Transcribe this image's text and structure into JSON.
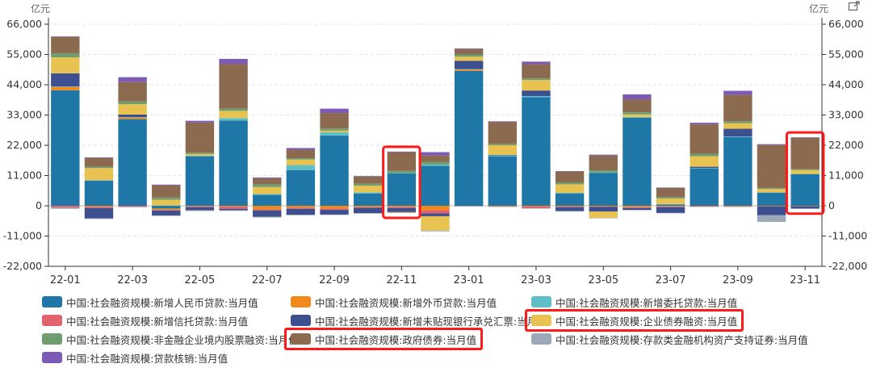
{
  "y_unit_left": "亿元",
  "y_unit_right": "亿元",
  "chart_data": {
    "type": "bar",
    "stacked": true,
    "categories": [
      "22-01",
      "22-02",
      "22-03",
      "22-04",
      "22-05",
      "22-06",
      "22-07",
      "22-08",
      "22-09",
      "22-10",
      "22-11",
      "22-12",
      "23-01",
      "23-02",
      "23-03",
      "23-04",
      "23-05",
      "23-06",
      "23-07",
      "23-08",
      "23-09",
      "23-10",
      "23-11"
    ],
    "x_tick_labels": [
      "22-01",
      "22-03",
      "22-05",
      "22-07",
      "22-09",
      "22-11",
      "23-01",
      "23-03",
      "23-05",
      "23-07",
      "23-09",
      "23-11"
    ],
    "ylim": [
      -22000,
      66000
    ],
    "y_ticks": [
      -22000,
      -11000,
      0,
      11000,
      22000,
      33000,
      44000,
      55000,
      66000
    ],
    "y_tick_labels": [
      "-22,000",
      "-11,000",
      "0",
      "11,000",
      "22,000",
      "33,000",
      "44,000",
      "55,000",
      "66,000"
    ],
    "grid": true,
    "legend_position": "bottom",
    "series": [
      {
        "name": "中国:社会融资规模:新增人民币贷款:当月值",
        "color": "#1f77a8",
        "values": [
          42000,
          9200,
          31500,
          -1000,
          18000,
          31000,
          4000,
          13000,
          25500,
          4500,
          11800,
          14500,
          49000,
          18000,
          39500,
          4500,
          12000,
          32000,
          500,
          13500,
          25000,
          4800,
          11500
        ]
      },
      {
        "name": "中国:社会融资规模:新增外币贷款:当月值",
        "color": "#f08a1c",
        "values": [
          1200,
          -400,
          600,
          -500,
          -200,
          -300,
          -1300,
          -700,
          -1000,
          -500,
          -400,
          -1600,
          500,
          -200,
          -300,
          -300,
          -300,
          -500,
          -200,
          -100,
          -200,
          -150,
          -100
        ]
      },
      {
        "name": "中国:社会融资规模:新增委托贷款:当月值",
        "color": "#5fbfc7",
        "values": [
          150,
          100,
          150,
          100,
          200,
          900,
          300,
          1800,
          1200,
          400,
          100,
          500,
          200,
          300,
          400,
          200,
          100,
          300,
          150,
          200,
          200,
          100,
          80
        ]
      },
      {
        "name": "中国:社会融资规模:新增信托贷款:当月值",
        "color": "#e0636e",
        "values": [
          -700,
          -400,
          -400,
          -200,
          -300,
          -800,
          -400,
          -400,
          -500,
          -200,
          -400,
          -1200,
          -100,
          -100,
          -600,
          -200,
          -100,
          -300,
          -300,
          -200,
          -150,
          -100,
          -100
        ]
      },
      {
        "name": "中国:社会融资规模:新增未贴现银行承兑汇票:当月值",
        "color": "#3d4f8f",
        "values": [
          4800,
          -3800,
          900,
          -1800,
          -1100,
          -500,
          -2300,
          -2200,
          -1700,
          -2000,
          -1500,
          -1000,
          3000,
          200,
          2000,
          -1400,
          -1700,
          -700,
          -2100,
          500,
          2800,
          -3200,
          -800
        ]
      },
      {
        "name": "中国:社会融资规模:企业债券融资:当月值",
        "color": "#e8c352",
        "values": [
          5800,
          4400,
          3800,
          2100,
          600,
          2600,
          2500,
          2000,
          600,
          2400,
          -200,
          -5200,
          1500,
          3500,
          3800,
          3100,
          -2300,
          900,
          2000,
          3800,
          2000,
          1200,
          1400
        ]
      },
      {
        "name": "中国:社会融资规模:非金融企业境内股票融资:当月值",
        "color": "#6e9e6f",
        "values": [
          1500,
          500,
          1000,
          800,
          500,
          800,
          1000,
          500,
          800,
          700,
          800,
          1000,
          800,
          500,
          600,
          700,
          800,
          800,
          500,
          900,
          700,
          400,
          300
        ]
      },
      {
        "name": "中国:社会融资规模:政府债券:当月值",
        "color": "#8b6a4f",
        "values": [
          6000,
          3200,
          7000,
          4500,
          11000,
          16200,
          2200,
          3100,
          5600,
          2700,
          6800,
          2300,
          2000,
          8000,
          5200,
          4000,
          5400,
          4700,
          3400,
          10800,
          9600,
          15600,
          11500
        ]
      },
      {
        "name": "中国:社会融资规模:存款类金融机构资产支持证券:当月值",
        "color": "#9aa8b8",
        "values": [
          -400,
          -200,
          -150,
          -200,
          -300,
          -250,
          -250,
          -150,
          -150,
          -100,
          -150,
          -300,
          -100,
          -150,
          -150,
          -100,
          -100,
          -100,
          -100,
          -100,
          -100,
          -2400,
          -100
        ]
      },
      {
        "name": "中国:社会融资规模:贷款核销:当月值",
        "color": "#7d5bb5",
        "values": [
          100,
          200,
          1800,
          200,
          600,
          1900,
          300,
          600,
          1600,
          100,
          200,
          1200,
          200,
          200,
          900,
          100,
          300,
          1800,
          100,
          500,
          1500,
          300,
          100
        ]
      }
    ],
    "highlight_legend": [
      "中国:社会融资规模:企业债券融资:当月值",
      "中国:社会融资规模:政府债券:当月值"
    ],
    "highlight_categories": [
      "22-11",
      "23-11"
    ]
  }
}
